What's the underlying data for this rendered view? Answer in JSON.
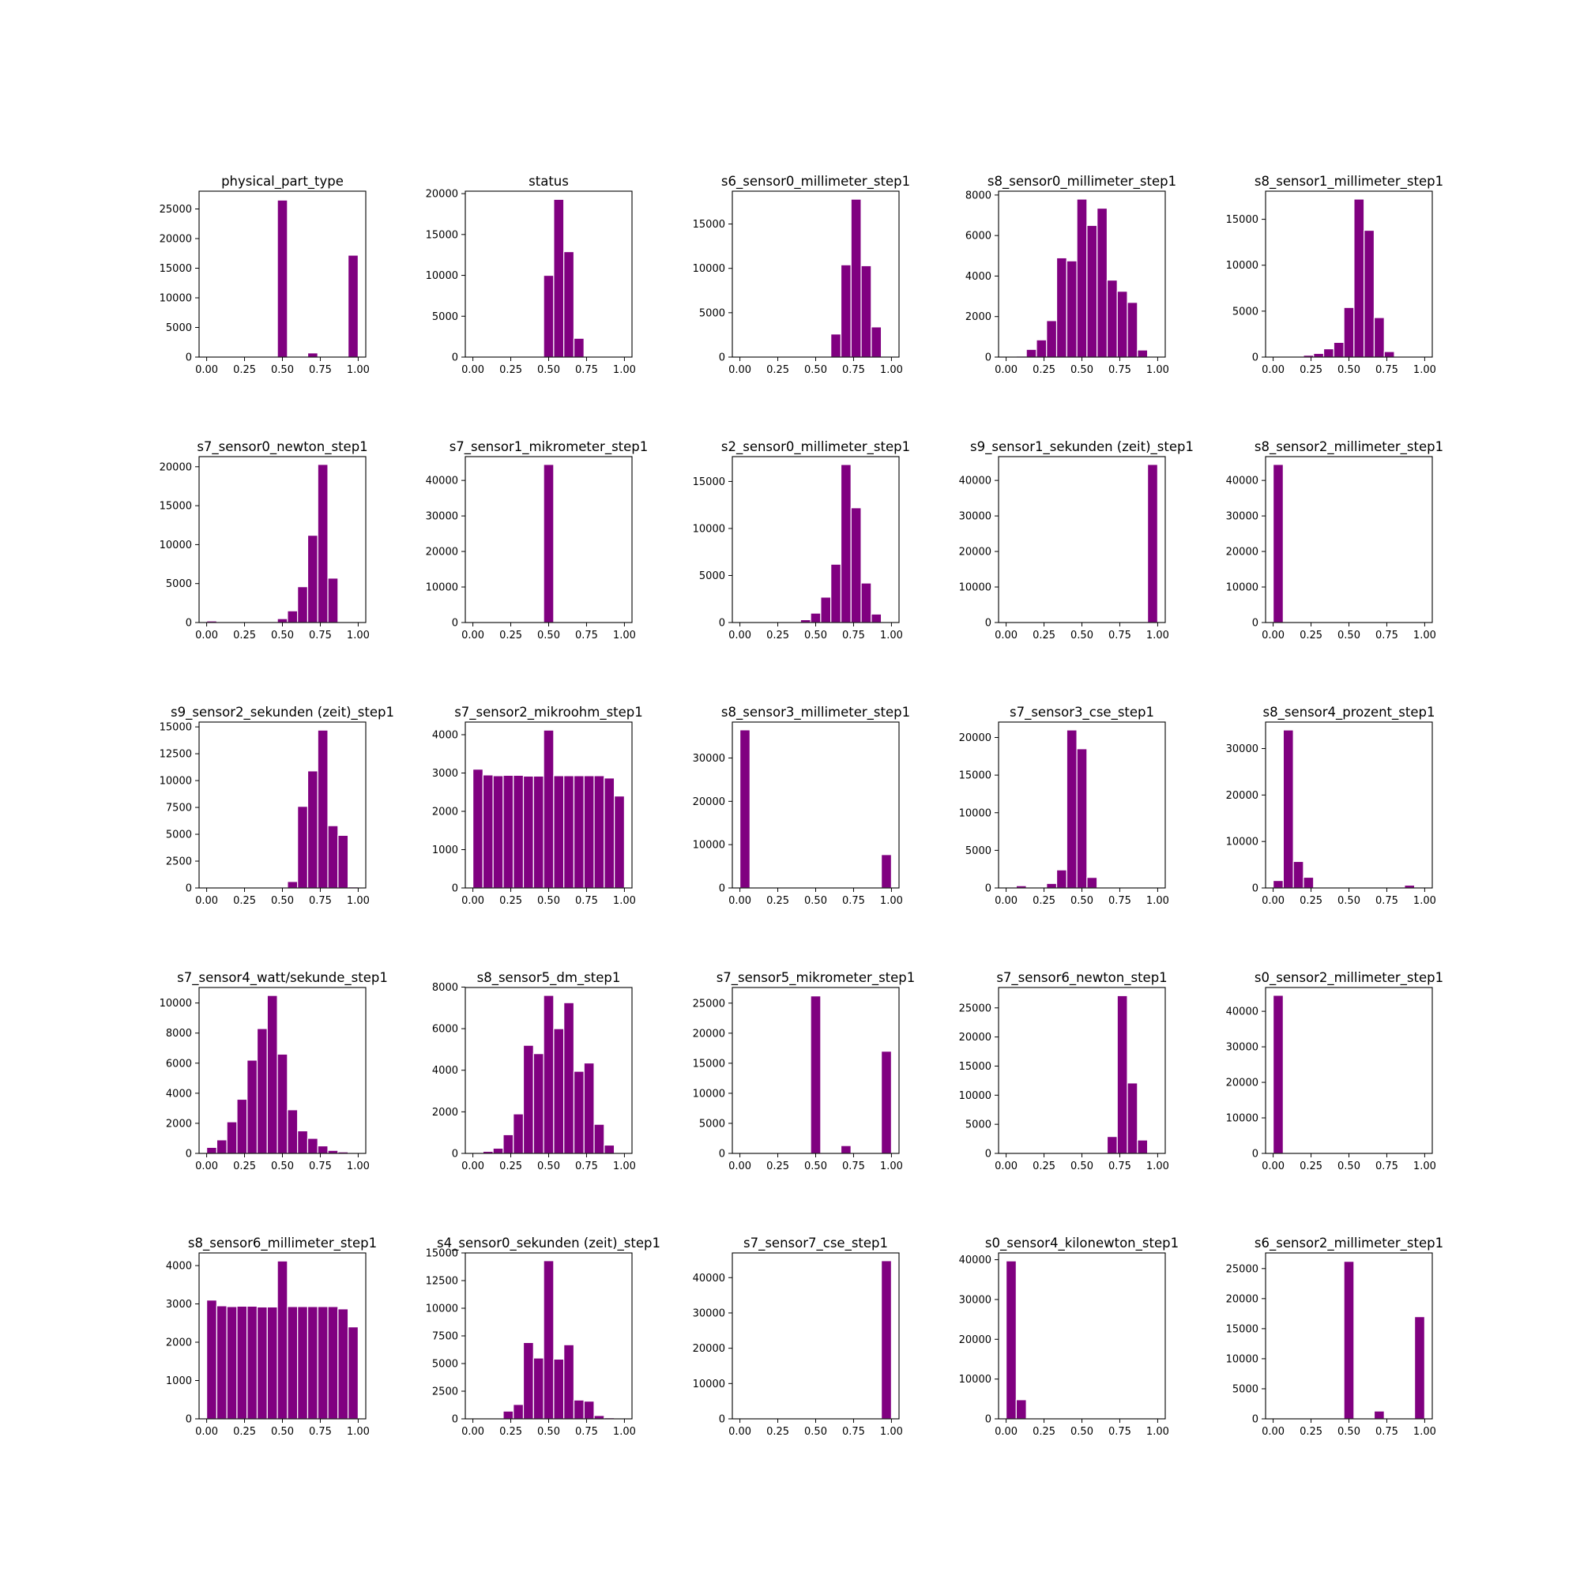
{
  "bar_color": "#800080",
  "bar_edge_color": "#ffffff",
  "chart_data": [
    {
      "type": "bar",
      "title": "physical_part_type",
      "bin_edges": [
        0,
        0.0667,
        0.1333,
        0.2,
        0.2667,
        0.3333,
        0.4,
        0.4667,
        0.5333,
        0.6,
        0.6667,
        0.7333,
        0.8,
        0.8667,
        0.9333,
        1.0
      ],
      "values": [
        0,
        0,
        0,
        0,
        0,
        0,
        0,
        26500,
        0,
        0,
        700,
        0,
        0,
        0,
        17200
      ],
      "xlim": [
        -0.05,
        1.05
      ],
      "ylim": [
        0,
        28000
      ],
      "xticks": [
        "0.00",
        "0.25",
        "0.50",
        "0.75",
        "1.00"
      ],
      "yticks": [
        0,
        5000,
        10000,
        15000,
        20000,
        25000
      ]
    },
    {
      "type": "bar",
      "title": "status",
      "bin_edges": [
        0,
        0.0667,
        0.1333,
        0.2,
        0.2667,
        0.3333,
        0.4,
        0.4667,
        0.5333,
        0.6,
        0.6667,
        0.7333,
        0.8,
        0.8667,
        0.9333,
        1.0
      ],
      "values": [
        0,
        0,
        0,
        0,
        0,
        0,
        0,
        10000,
        19300,
        12900,
        2300,
        0,
        0,
        0,
        0
      ],
      "xlim": [
        -0.05,
        1.05
      ],
      "ylim": [
        0,
        20300
      ],
      "xticks": [
        "0.00",
        "0.25",
        "0.50",
        "0.75",
        "1.00"
      ],
      "yticks": [
        0,
        5000,
        10000,
        15000,
        20000
      ]
    },
    {
      "type": "bar",
      "title": "s6_sensor0_millimeter_step1",
      "bin_edges": [
        0,
        0.0667,
        0.1333,
        0.2,
        0.2667,
        0.3333,
        0.4,
        0.4667,
        0.5333,
        0.6,
        0.6667,
        0.7333,
        0.8,
        0.8667,
        0.9333,
        1.0
      ],
      "values": [
        0,
        0,
        0,
        0,
        0,
        0,
        0,
        0,
        0,
        2600,
        10400,
        17800,
        10300,
        3400,
        0
      ],
      "xlim": [
        -0.05,
        1.05
      ],
      "ylim": [
        0,
        18700
      ],
      "xticks": [
        "0.00",
        "0.25",
        "0.50",
        "0.75",
        "1.00"
      ],
      "yticks": [
        0,
        5000,
        10000,
        15000
      ]
    },
    {
      "type": "bar",
      "title": "s8_sensor0_millimeter_step1",
      "bin_edges": [
        0,
        0.0667,
        0.1333,
        0.2,
        0.2667,
        0.3333,
        0.4,
        0.4667,
        0.5333,
        0.6,
        0.6667,
        0.7333,
        0.8,
        0.8667,
        0.9333,
        1.0
      ],
      "values": [
        0,
        50,
        380,
        850,
        1800,
        4900,
        4750,
        7800,
        6500,
        7350,
        3800,
        3250,
        2700,
        350,
        0
      ],
      "xlim": [
        -0.05,
        1.05
      ],
      "ylim": [
        0,
        8190
      ],
      "xticks": [
        "0.00",
        "0.25",
        "0.50",
        "0.75",
        "1.00"
      ],
      "yticks": [
        0,
        2000,
        4000,
        6000,
        8000
      ]
    },
    {
      "type": "bar",
      "title": "s8_sensor1_millimeter_step1",
      "bin_edges": [
        0,
        0.0667,
        0.1333,
        0.2,
        0.2667,
        0.3333,
        0.4,
        0.4667,
        0.5333,
        0.6,
        0.6667,
        0.7333,
        0.8,
        0.8667,
        0.9333,
        1.0
      ],
      "values": [
        0,
        0,
        0,
        200,
        400,
        900,
        1600,
        5400,
        17200,
        13800,
        4300,
        600,
        0,
        0,
        0
      ],
      "xlim": [
        -0.05,
        1.05
      ],
      "ylim": [
        0,
        18060
      ],
      "xticks": [
        "0.00",
        "0.25",
        "0.50",
        "0.75",
        "1.00"
      ],
      "yticks": [
        0,
        5000,
        10000,
        15000
      ]
    },
    {
      "type": "bar",
      "title": "s7_sensor0_newton_step1",
      "bin_edges": [
        0,
        0.0667,
        0.1333,
        0.2,
        0.2667,
        0.3333,
        0.4,
        0.4667,
        0.5333,
        0.6,
        0.6667,
        0.7333,
        0.8,
        0.8667,
        0.9333,
        1.0
      ],
      "values": [
        200,
        0,
        0,
        0,
        0,
        0,
        100,
        500,
        1500,
        4600,
        11200,
        20300,
        5700,
        0,
        0
      ],
      "xlim": [
        -0.05,
        1.05
      ],
      "ylim": [
        0,
        21300
      ],
      "xticks": [
        "0.00",
        "0.25",
        "0.50",
        "0.75",
        "1.00"
      ],
      "yticks": [
        0,
        5000,
        10000,
        15000,
        20000
      ]
    },
    {
      "type": "bar",
      "title": "s7_sensor1_mikrometer_step1",
      "bin_edges": [
        0.4667,
        0.5333
      ],
      "values": [
        44500
      ],
      "xlim": [
        -0.05,
        1.05
      ],
      "ylim": [
        0,
        46700
      ],
      "xticks": [
        "0.00",
        "0.25",
        "0.50",
        "0.75",
        "1.00"
      ],
      "yticks": [
        0,
        10000,
        20000,
        30000,
        40000
      ]
    },
    {
      "type": "bar",
      "title": "s2_sensor0_millimeter_step1",
      "bin_edges": [
        0,
        0.0667,
        0.1333,
        0.2,
        0.2667,
        0.3333,
        0.4,
        0.4667,
        0.5333,
        0.6,
        0.6667,
        0.7333,
        0.8,
        0.8667,
        0.9333,
        1.0
      ],
      "values": [
        0,
        0,
        0,
        0,
        0,
        50,
        300,
        1000,
        2700,
        6200,
        16800,
        12200,
        4200,
        900,
        0
      ],
      "xlim": [
        -0.05,
        1.05
      ],
      "ylim": [
        0,
        17640
      ],
      "xticks": [
        "0.00",
        "0.25",
        "0.50",
        "0.75",
        "1.00"
      ],
      "yticks": [
        0,
        5000,
        10000,
        15000
      ]
    },
    {
      "type": "bar",
      "title": "s9_sensor1_sekunden (zeit)_step1",
      "bin_edges": [
        0.9333,
        1.0
      ],
      "values": [
        44500
      ],
      "xlim": [
        -0.05,
        1.05
      ],
      "ylim": [
        0,
        46700
      ],
      "xticks": [
        "0.00",
        "0.25",
        "0.50",
        "0.75",
        "1.00"
      ],
      "yticks": [
        0,
        10000,
        20000,
        30000,
        40000
      ]
    },
    {
      "type": "bar",
      "title": "s8_sensor2_millimeter_step1",
      "bin_edges": [
        0,
        0.0667
      ],
      "values": [
        44500
      ],
      "xlim": [
        -0.05,
        1.05
      ],
      "ylim": [
        0,
        46700
      ],
      "xticks": [
        "0.00",
        "0.25",
        "0.50",
        "0.75",
        "1.00"
      ],
      "yticks": [
        0,
        10000,
        20000,
        30000,
        40000
      ]
    },
    {
      "type": "bar",
      "title": "s9_sensor2_sekunden (zeit)_step1",
      "bin_edges": [
        0,
        0.0667,
        0.1333,
        0.2,
        0.2667,
        0.3333,
        0.4,
        0.4667,
        0.5333,
        0.6,
        0.6667,
        0.7333,
        0.8,
        0.8667,
        0.9333,
        1.0
      ],
      "values": [
        0,
        0,
        0,
        0,
        0,
        0,
        0,
        0,
        600,
        7600,
        10900,
        14700,
        5800,
        4900,
        100
      ],
      "xlim": [
        -0.05,
        1.05
      ],
      "ylim": [
        0,
        15450
      ],
      "xticks": [
        "0.00",
        "0.25",
        "0.50",
        "0.75",
        "1.00"
      ],
      "yticks": [
        0,
        2500,
        5000,
        7500,
        10000,
        12500,
        15000
      ]
    },
    {
      "type": "bar",
      "title": "s7_sensor2_mikroohm_step1",
      "bin_edges": [
        0,
        0.0667,
        0.1333,
        0.2,
        0.2667,
        0.3333,
        0.4,
        0.4667,
        0.5333,
        0.6,
        0.6667,
        0.7333,
        0.8,
        0.8667,
        0.9333,
        1.0
      ],
      "values": [
        3100,
        2950,
        2930,
        2940,
        2940,
        2920,
        2920,
        4120,
        2930,
        2930,
        2930,
        2930,
        2930,
        2870,
        2400
      ],
      "xlim": [
        -0.05,
        1.05
      ],
      "ylim": [
        0,
        4330
      ],
      "xticks": [
        "0.00",
        "0.25",
        "0.50",
        "0.75",
        "1.00"
      ],
      "yticks": [
        0,
        1000,
        2000,
        3000,
        4000
      ]
    },
    {
      "type": "bar",
      "title": "s8_sensor3_millimeter_step1",
      "bin_edges": [
        0,
        0.0667,
        0.1333,
        0.2,
        0.2667,
        0.3333,
        0.4,
        0.4667,
        0.5333,
        0.6,
        0.6667,
        0.7333,
        0.8,
        0.8667,
        0.9333,
        1.0
      ],
      "values": [
        36500,
        0,
        0,
        0,
        0,
        0,
        0,
        0,
        0,
        0,
        0,
        0,
        0,
        0,
        7700
      ],
      "xlim": [
        -0.05,
        1.05
      ],
      "ylim": [
        0,
        38300
      ],
      "xticks": [
        "0.00",
        "0.25",
        "0.50",
        "0.75",
        "1.00"
      ],
      "yticks": [
        0,
        10000,
        20000,
        30000
      ]
    },
    {
      "type": "bar",
      "title": "s7_sensor3_cse_step1",
      "bin_edges": [
        0,
        0.0667,
        0.1333,
        0.2,
        0.2667,
        0.3333,
        0.4,
        0.4667,
        0.5333,
        0.6,
        0.6667,
        0.7333,
        0.8,
        0.8667,
        0.9333,
        1.0
      ],
      "values": [
        0,
        300,
        0,
        100,
        600,
        2400,
        21000,
        18500,
        1400,
        0,
        0,
        0,
        0,
        0,
        0
      ],
      "xlim": [
        -0.05,
        1.05
      ],
      "ylim": [
        0,
        22050
      ],
      "xticks": [
        "0.00",
        "0.25",
        "0.50",
        "0.75",
        "1.00"
      ],
      "yticks": [
        0,
        5000,
        10000,
        15000,
        20000
      ]
    },
    {
      "type": "bar",
      "title": "s8_sensor4_prozent_step1",
      "bin_edges": [
        0,
        0.0667,
        0.1333,
        0.2,
        0.2667,
        0.3333,
        0.4,
        0.4667,
        0.5333,
        0.6,
        0.6667,
        0.7333,
        0.8,
        0.8667,
        0.9333,
        1.0
      ],
      "values": [
        1600,
        34000,
        5700,
        2300,
        0,
        0,
        0,
        0,
        0,
        0,
        0,
        0,
        0,
        600,
        0
      ],
      "xlim": [
        -0.05,
        1.05
      ],
      "ylim": [
        0,
        35700
      ],
      "xticks": [
        "0.00",
        "0.25",
        "0.50",
        "0.75",
        "1.00"
      ],
      "yticks": [
        0,
        10000,
        20000,
        30000
      ]
    },
    {
      "type": "bar",
      "title": "s7_sensor4_watt/sekunde_step1",
      "bin_edges": [
        0,
        0.0667,
        0.1333,
        0.2,
        0.2667,
        0.3333,
        0.4,
        0.4667,
        0.5333,
        0.6,
        0.6667,
        0.7333,
        0.8,
        0.8667,
        0.9333,
        1.0
      ],
      "values": [
        400,
        900,
        2100,
        3600,
        6200,
        8300,
        10500,
        6600,
        2900,
        1500,
        1000,
        500,
        200,
        100,
        0
      ],
      "xlim": [
        -0.05,
        1.05
      ],
      "ylim": [
        0,
        11030
      ],
      "xticks": [
        "0.00",
        "0.25",
        "0.50",
        "0.75",
        "1.00"
      ],
      "yticks": [
        0,
        2000,
        4000,
        6000,
        8000,
        10000
      ]
    },
    {
      "type": "bar",
      "title": "s8_sensor5_dm_step1",
      "bin_edges": [
        0,
        0.0667,
        0.1333,
        0.2,
        0.2667,
        0.3333,
        0.4,
        0.4667,
        0.5333,
        0.6,
        0.6667,
        0.7333,
        0.8,
        0.8667,
        0.9333,
        1.0
      ],
      "values": [
        0,
        100,
        250,
        900,
        1900,
        5200,
        4800,
        7600,
        6000,
        7250,
        3950,
        4350,
        1400,
        400,
        0
      ],
      "xlim": [
        -0.05,
        1.05
      ],
      "ylim": [
        0,
        7980
      ],
      "xticks": [
        "0.00",
        "0.25",
        "0.50",
        "0.75",
        "1.00"
      ],
      "yticks": [
        0,
        2000,
        4000,
        6000,
        8000
      ]
    },
    {
      "type": "bar",
      "title": "s7_sensor5_mikrometer_step1",
      "bin_edges": [
        0,
        0.0667,
        0.1333,
        0.2,
        0.2667,
        0.3333,
        0.4,
        0.4667,
        0.5333,
        0.6,
        0.6667,
        0.7333,
        0.8,
        0.8667,
        0.9333,
        1.0
      ],
      "values": [
        0,
        0,
        0,
        0,
        0,
        0,
        0,
        26200,
        0,
        0,
        1300,
        0,
        0,
        0,
        17000
      ],
      "xlim": [
        -0.05,
        1.05
      ],
      "ylim": [
        0,
        27600
      ],
      "xticks": [
        "0.00",
        "0.25",
        "0.50",
        "0.75",
        "1.00"
      ],
      "yticks": [
        0,
        5000,
        10000,
        15000,
        20000,
        25000
      ]
    },
    {
      "type": "bar",
      "title": "s7_sensor6_newton_step1",
      "bin_edges": [
        0,
        0.0667,
        0.1333,
        0.2,
        0.2667,
        0.3333,
        0.4,
        0.4667,
        0.5333,
        0.6,
        0.6667,
        0.7333,
        0.8,
        0.8667,
        0.9333,
        1.0
      ],
      "values": [
        0,
        0,
        0,
        0,
        0,
        0,
        0,
        0,
        0,
        0,
        2900,
        27100,
        12100,
        2300,
        0
      ],
      "xlim": [
        -0.05,
        1.05
      ],
      "ylim": [
        0,
        28500
      ],
      "xticks": [
        "0.00",
        "0.25",
        "0.50",
        "0.75",
        "1.00"
      ],
      "yticks": [
        0,
        5000,
        10000,
        15000,
        20000,
        25000
      ]
    },
    {
      "type": "bar",
      "title": "s0_sensor2_millimeter_step1",
      "bin_edges": [
        0,
        0.0667
      ],
      "values": [
        44500
      ],
      "xlim": [
        -0.05,
        1.05
      ],
      "ylim": [
        0,
        46700
      ],
      "xticks": [
        "0.00",
        "0.25",
        "0.50",
        "0.75",
        "1.00"
      ],
      "yticks": [
        0,
        10000,
        20000,
        30000,
        40000
      ]
    },
    {
      "type": "bar",
      "title": "s8_sensor6_millimeter_step1",
      "bin_edges": [
        0,
        0.0667,
        0.1333,
        0.2,
        0.2667,
        0.3333,
        0.4,
        0.4667,
        0.5333,
        0.6,
        0.6667,
        0.7333,
        0.8,
        0.8667,
        0.9333,
        1.0
      ],
      "values": [
        3100,
        2950,
        2930,
        2940,
        2940,
        2920,
        2920,
        4120,
        2930,
        2930,
        2930,
        2930,
        2930,
        2870,
        2400
      ],
      "xlim": [
        -0.05,
        1.05
      ],
      "ylim": [
        0,
        4330
      ],
      "xticks": [
        "0.00",
        "0.25",
        "0.50",
        "0.75",
        "1.00"
      ],
      "yticks": [
        0,
        1000,
        2000,
        3000,
        4000
      ]
    },
    {
      "type": "bar",
      "title": "s4_sensor0_sekunden (zeit)_step1",
      "bin_edges": [
        0,
        0.0667,
        0.1333,
        0.2,
        0.2667,
        0.3333,
        0.4,
        0.4667,
        0.5333,
        0.6,
        0.6667,
        0.7333,
        0.8,
        0.8667,
        0.9333,
        1.0
      ],
      "values": [
        0,
        0,
        50,
        700,
        1300,
        6900,
        5500,
        14300,
        5400,
        6700,
        1700,
        1600,
        300,
        100,
        0
      ],
      "xlim": [
        -0.05,
        1.05
      ],
      "ylim": [
        0,
        15000
      ],
      "xticks": [
        "0.00",
        "0.25",
        "0.50",
        "0.75",
        "1.00"
      ],
      "yticks": [
        0,
        2500,
        5000,
        7500,
        10000,
        12500,
        15000
      ]
    },
    {
      "type": "bar",
      "title": "s7_sensor7_cse_step1",
      "bin_edges": [
        0.9333,
        1.0
      ],
      "values": [
        44800
      ],
      "xlim": [
        -0.05,
        1.05
      ],
      "ylim": [
        0,
        47000
      ],
      "xticks": [
        "0.00",
        "0.25",
        "0.50",
        "0.75",
        "1.00"
      ],
      "yticks": [
        0,
        10000,
        20000,
        30000,
        40000
      ]
    },
    {
      "type": "bar",
      "title": "s0_sensor4_kilonewton_step1",
      "bin_edges": [
        0,
        0.0667,
        0.1333,
        0.2
      ],
      "values": [
        39700,
        4800,
        200
      ],
      "xlim": [
        -0.05,
        1.05
      ],
      "ylim": [
        0,
        41700
      ],
      "xticks": [
        "0.00",
        "0.25",
        "0.50",
        "0.75",
        "1.00"
      ],
      "yticks": [
        0,
        10000,
        20000,
        30000,
        40000
      ]
    },
    {
      "type": "bar",
      "title": "s6_sensor2_millimeter_step1",
      "bin_edges": [
        0,
        0.0667,
        0.1333,
        0.2,
        0.2667,
        0.3333,
        0.4,
        0.4667,
        0.5333,
        0.6,
        0.6667,
        0.7333,
        0.8,
        0.8667,
        0.9333,
        1.0
      ],
      "values": [
        0,
        0,
        0,
        0,
        0,
        0,
        0,
        26200,
        0,
        0,
        1300,
        0,
        0,
        0,
        17000
      ],
      "xlim": [
        -0.05,
        1.05
      ],
      "ylim": [
        0,
        27600
      ],
      "xticks": [
        "0.00",
        "0.25",
        "0.50",
        "0.75",
        "1.00"
      ],
      "yticks": [
        0,
        5000,
        10000,
        15000,
        20000,
        25000
      ]
    }
  ]
}
